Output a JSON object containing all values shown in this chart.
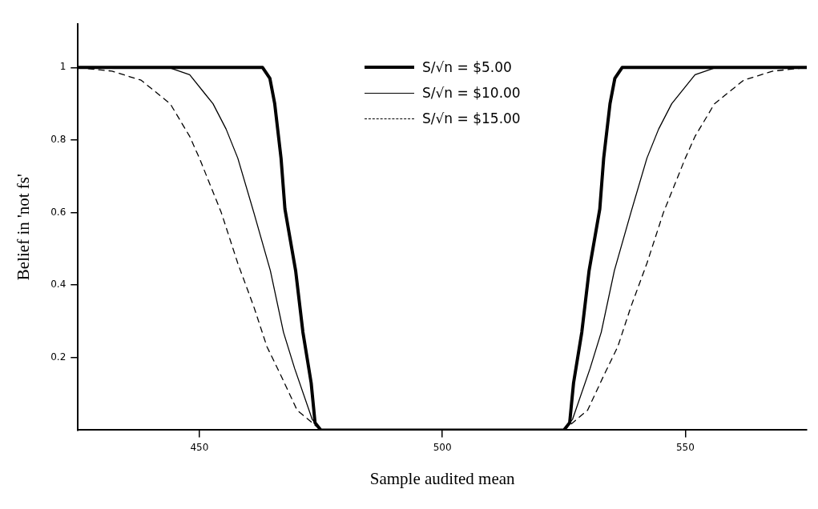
{
  "chart_data": {
    "type": "line",
    "xlabel": "Sample audited mean",
    "ylabel": "Belief in 'not fs'",
    "xlim": [
      425,
      575
    ],
    "xticks": [
      450,
      500,
      550
    ],
    "ylim": [
      0,
      1.12
    ],
    "yticks": [
      0.2,
      0.4,
      0.6,
      0.8,
      1
    ],
    "grid": false,
    "legend": "top",
    "marker": "none",
    "series": [
      {
        "name": "S/√n = $5.00",
        "color": "#000000",
        "line_style": "solid",
        "x": [
          425,
          463,
          464.5,
          465.5,
          466.8,
          467.6,
          469.8,
          471.3,
          473,
          473.8,
          475,
          525,
          526.2,
          527,
          528.7,
          530.2,
          532.4,
          533.2,
          534.5,
          535.5,
          537,
          575
        ],
        "values": [
          1,
          1,
          0.97,
          0.9,
          0.75,
          0.61,
          0.44,
          0.27,
          0.13,
          0.02,
          0,
          0,
          0.02,
          0.13,
          0.27,
          0.44,
          0.61,
          0.75,
          0.9,
          0.97,
          1,
          1
        ]
      },
      {
        "name": "S/√n = $10.00",
        "color": "#000000",
        "line_style": "solid",
        "x": [
          425,
          443.7,
          448,
          452.8,
          455.5,
          457.9,
          461.2,
          464.6,
          467.3,
          469.6,
          473.2,
          475,
          525,
          526.8,
          530.4,
          532.7,
          535.4,
          538.8,
          542.1,
          544.5,
          547.2,
          552,
          556.3,
          575
        ],
        "values": [
          1,
          1,
          0.98,
          0.9,
          0.83,
          0.75,
          0.6,
          0.44,
          0.27,
          0.17,
          0.03,
          0,
          0,
          0.03,
          0.17,
          0.27,
          0.44,
          0.6,
          0.75,
          0.83,
          0.9,
          0.98,
          1,
          1
        ]
      },
      {
        "name": "S/√n = $15.00",
        "color": "#000000",
        "line_style": "dashed",
        "x": [
          425,
          432,
          438,
          444,
          448,
          450,
          454.5,
          457.9,
          461.2,
          463.9,
          466.8,
          470.1,
          475,
          525,
          529.9,
          533.2,
          536.1,
          538.8,
          542.1,
          545.5,
          550,
          552,
          556,
          562,
          568,
          575
        ],
        "values": [
          1,
          0.99,
          0.965,
          0.9,
          0.81,
          0.75,
          0.6,
          0.46,
          0.34,
          0.23,
          0.15,
          0.055,
          0,
          0,
          0.055,
          0.15,
          0.23,
          0.34,
          0.46,
          0.6,
          0.75,
          0.81,
          0.9,
          0.965,
          0.99,
          1
        ]
      }
    ]
  }
}
